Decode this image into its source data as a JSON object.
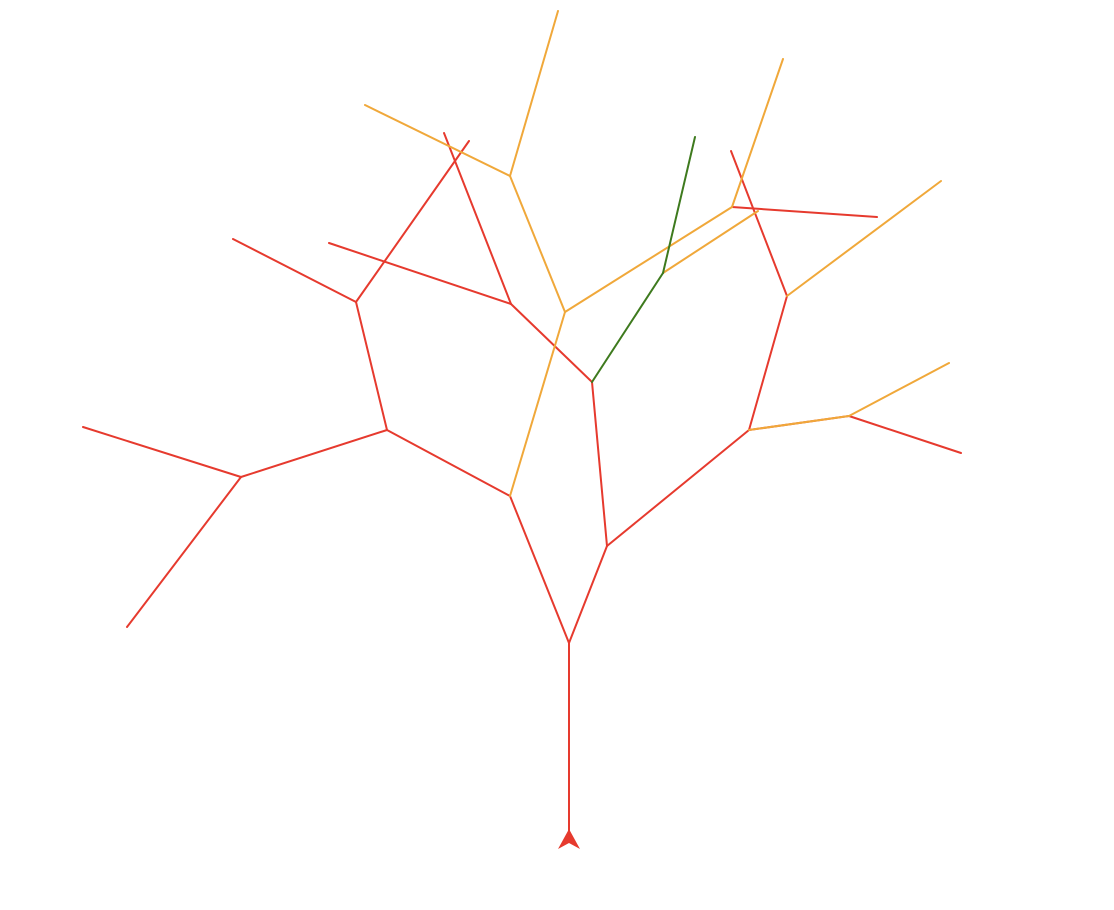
{
  "canvas": {
    "background": "#ffffff"
  },
  "palette": {
    "red": "#e63a2e",
    "orange": "#f0a83a",
    "green": "#3e7a1e"
  },
  "turtle": {
    "icon": "turtle-arrow-icon",
    "color": "#e63a2e",
    "heading": "up"
  }
}
